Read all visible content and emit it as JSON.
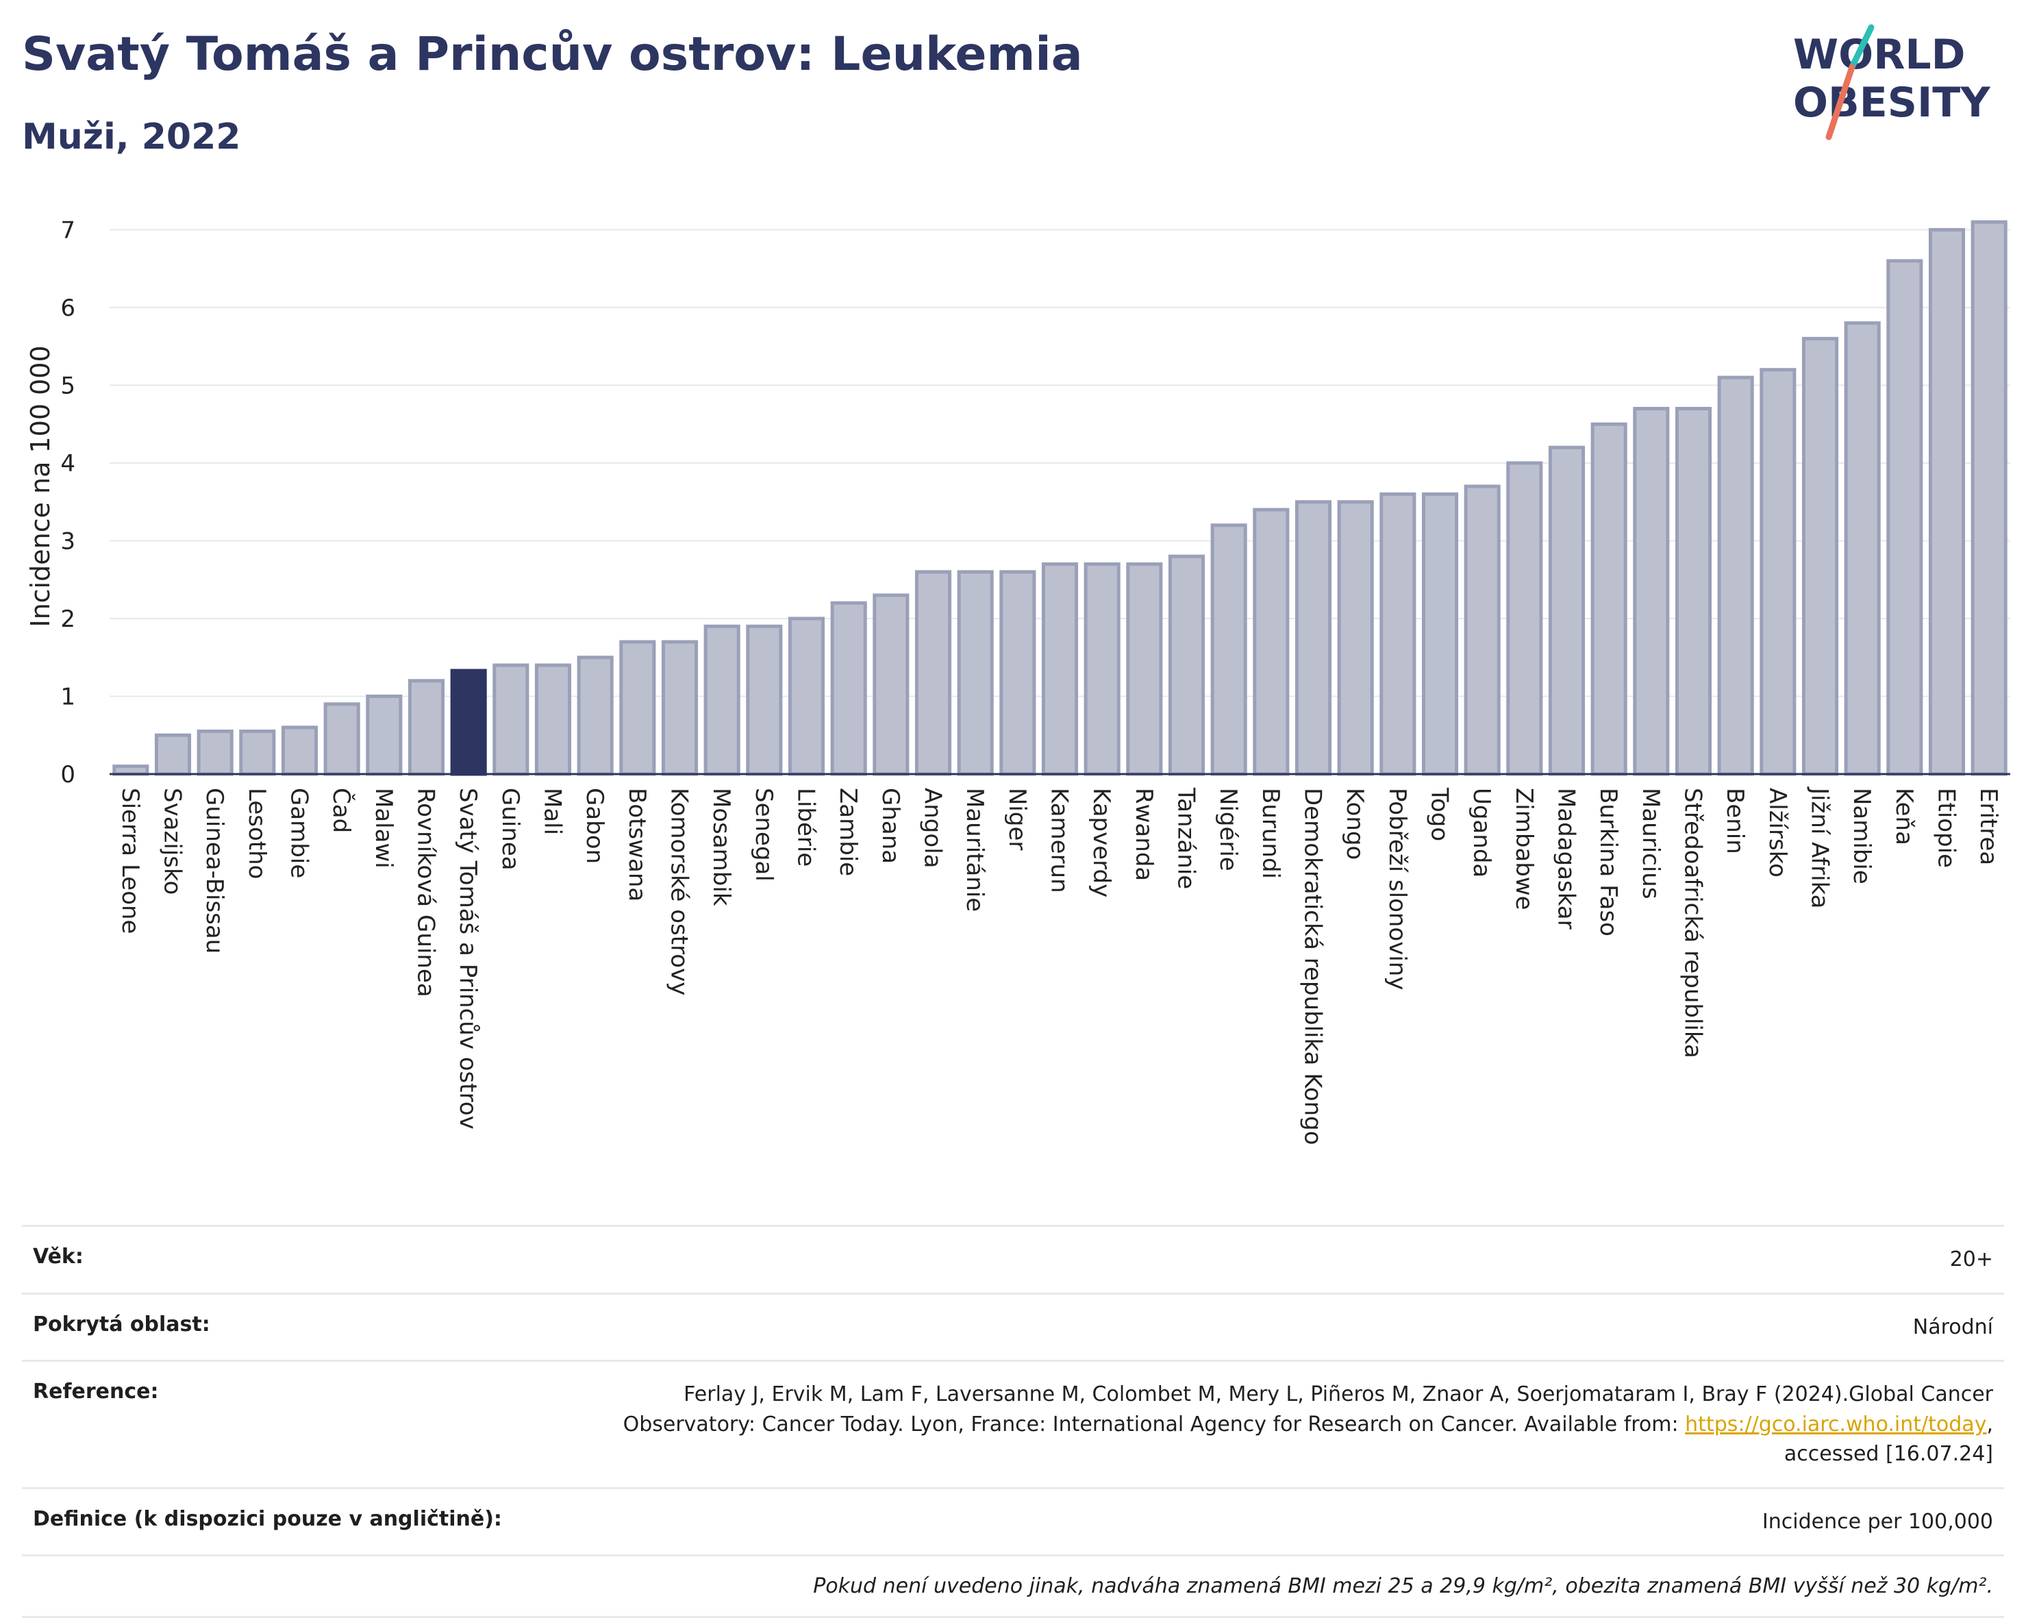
{
  "header": {
    "title": "Svatý Tomáš a Princův ostrov: Leukemia",
    "subtitle": "Muži, 2022"
  },
  "logo": {
    "line1": "WORLD",
    "line2": "OBESITY",
    "accent_teal": "#2bbfb5",
    "accent_coral": "#e8735a"
  },
  "colors": {
    "bar": "#bcc0ce",
    "bar_stroke": "#9aa0b8",
    "highlight": "#2d3561",
    "title": "#2d3561"
  },
  "chart_data": {
    "type": "bar",
    "ylabel": "Incidence na 100 000",
    "ylim": [
      0,
      7.4
    ],
    "yticks": [
      0,
      1,
      2,
      3,
      4,
      5,
      6,
      7
    ],
    "grid": true,
    "highlight": "Svatý Tomáš a Princův ostrov",
    "categories": [
      "Sierra Leone",
      "Svazijsko",
      "Guinea-Bissau",
      "Lesotho",
      "Gambie",
      "Čad",
      "Malawi",
      "Rovníková Guinea",
      "Svatý Tomáš a Princův ostrov",
      "Guinea",
      "Mali",
      "Gabon",
      "Botswana",
      "Komorské ostrovy",
      "Mosambik",
      "Senegal",
      "Libérie",
      "Zambie",
      "Ghana",
      "Angola",
      "Mauritánie",
      "Niger",
      "Kamerun",
      "Kapverdy",
      "Rwanda",
      "Tanzánie",
      "Nigérie",
      "Burundi",
      "Demokratická republika Kongo",
      "Kongo",
      "Pobřeží slonoviny",
      "Togo",
      "Uganda",
      "Zimbabwe",
      "Madagaskar",
      "Burkina Faso",
      "Mauricius",
      "Středoafrická republika",
      "Benin",
      "Alžírsko",
      "Jižní Afrika",
      "Namibie",
      "Keňa",
      "Etiopie",
      "Eritrea"
    ],
    "values": [
      0.1,
      0.5,
      0.55,
      0.55,
      0.6,
      0.9,
      1.0,
      1.2,
      1.33,
      1.4,
      1.4,
      1.5,
      1.7,
      1.7,
      1.9,
      1.9,
      2.0,
      2.2,
      2.3,
      2.6,
      2.6,
      2.6,
      2.7,
      2.7,
      2.7,
      2.8,
      3.2,
      3.4,
      3.5,
      3.5,
      3.6,
      3.6,
      3.7,
      4.0,
      4.2,
      4.5,
      4.7,
      4.7,
      5.1,
      5.2,
      5.6,
      5.8,
      6.6,
      7.0,
      7.1
    ]
  },
  "info": {
    "age_label": "Věk:",
    "age_value": "20+",
    "area_label": "Pokrytá oblast:",
    "area_value": "Národní",
    "ref_label": "Reference:",
    "ref_text1": "Ferlay J, Ervik M, Lam F, Laversanne M, Colombet M, Mery L, Piñeros M, Znaor A, Soerjomataram I, Bray F (2024).Global Cancer",
    "ref_text2": "Observatory: Cancer Today. Lyon, France: International Agency for Research on Cancer. Available from: ",
    "ref_link": "https://gco.iarc.who.int/today",
    "ref_text3": ",",
    "ref_text4": "accessed [16.07.24]",
    "def_label": "Definice (k dispozici pouze v angličtině):",
    "def_value": "Incidence per 100,000",
    "note": "Pokud není uvedeno jinak, nadváha znamená BMI mezi 25 a 29,9 kg/m², obezita znamená BMI vyšší než 30 kg/m²."
  }
}
